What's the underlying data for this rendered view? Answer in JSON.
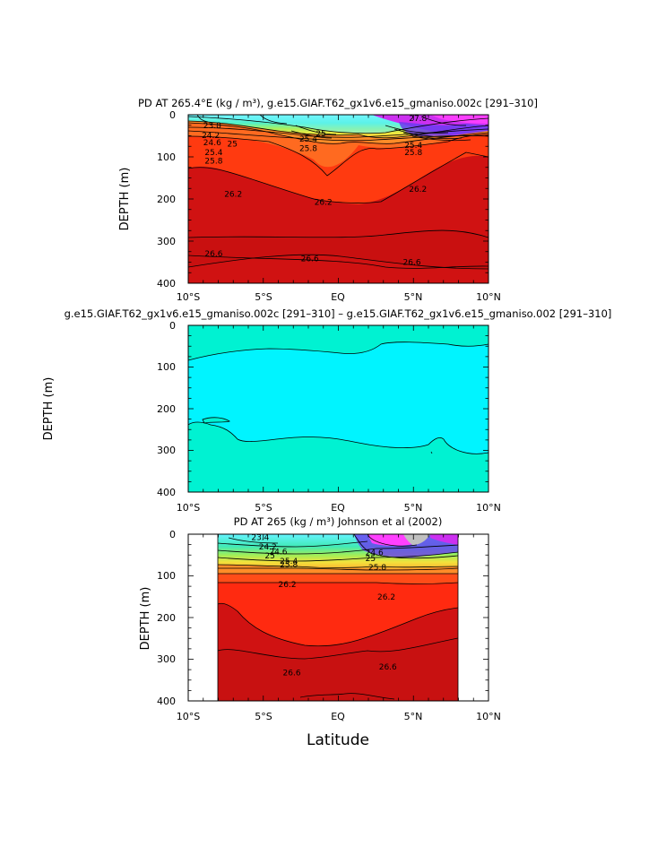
{
  "figure": {
    "x_axis_label": "Latitude"
  },
  "chart_data": [
    {
      "type": "heatmap",
      "kind": "filled-contour depth section",
      "title": "PD AT 265.4°E (kg / m³), g.e15.GIAF.T62_gx1v6.e15_gmaniso.002c [291–310]",
      "xlabel": "",
      "ylabel": "DEPTH (m)",
      "xlim": [
        -10,
        10
      ],
      "ylim": [
        400,
        0
      ],
      "x_ticks": [
        "10°S",
        "5°S",
        "EQ",
        "5°N",
        "10°N"
      ],
      "y_ticks": [
        "0",
        "100",
        "200",
        "300",
        "400"
      ],
      "lat_range": [
        -10,
        10
      ],
      "contour_labels": [
        {
          "text": "23.8",
          "lat": -9.0,
          "depth": 25
        },
        {
          "text": "24.2",
          "lat": -9.1,
          "depth": 49
        },
        {
          "text": "24.6",
          "lat": -9.0,
          "depth": 66
        },
        {
          "text": "25",
          "lat": -7.4,
          "depth": 69
        },
        {
          "text": "25.4",
          "lat": -8.9,
          "depth": 89
        },
        {
          "text": "25.8",
          "lat": -8.9,
          "depth": 110
        },
        {
          "text": "26.2",
          "lat": -7.6,
          "depth": 188
        },
        {
          "text": "26.2",
          "lat": -1.6,
          "depth": 207
        },
        {
          "text": "26.2",
          "lat": 4.7,
          "depth": 177
        },
        {
          "text": "26.6",
          "lat": -8.9,
          "depth": 330
        },
        {
          "text": "26.6",
          "lat": -2.5,
          "depth": 341
        },
        {
          "text": "26.6",
          "lat": 4.3,
          "depth": 350
        },
        {
          "text": "25.4",
          "lat": -2.6,
          "depth": 57
        },
        {
          "text": "25.8",
          "lat": -2.6,
          "depth": 80
        },
        {
          "text": "25",
          "lat": -1.5,
          "depth": 45
        },
        {
          "text": "25.4",
          "lat": 4.4,
          "depth": 72
        },
        {
          "text": "25.8",
          "lat": 4.4,
          "depth": 89
        },
        {
          "text": "27.8",
          "lat": 4.7,
          "depth": 8
        }
      ]
    },
    {
      "type": "heatmap",
      "kind": "filled-contour depth section (difference)",
      "title": "g.e15.GIAF.T62_gx1v6.e15_gmaniso.002c [291–310] – g.e15.GIAF.T62_gx1v6.e15_gmaniso.002 [291–310]",
      "xlabel": "",
      "ylabel": "DEPTH (m)",
      "xlim": [
        -10,
        10
      ],
      "ylim": [
        400,
        0
      ],
      "x_ticks": [
        "10°S",
        "5°S",
        "EQ",
        "5°N",
        "10°N"
      ],
      "y_ticks": [
        "0",
        "100",
        "200",
        "300",
        "400"
      ],
      "lat_range": [
        -10,
        10
      ],
      "contour_labels": []
    },
    {
      "type": "heatmap",
      "kind": "filled-contour depth section (observations)",
      "title": "PD AT 265 (kg / m³) Johnson et al (2002)",
      "xlabel": "Latitude",
      "ylabel": "DEPTH (m)",
      "xlim": [
        -10,
        10
      ],
      "ylim": [
        400,
        0
      ],
      "x_ticks": [
        "10°S",
        "5°S",
        "EQ",
        "5°N",
        "10°N"
      ],
      "y_ticks": [
        "0",
        "100",
        "200",
        "300",
        "400"
      ],
      "lat_range": [
        -8,
        8
      ],
      "contour_labels": [
        {
          "text": "23.4",
          "lat": -5.8,
          "depth": 8
        },
        {
          "text": "24.2",
          "lat": -5.3,
          "depth": 30
        },
        {
          "text": "24.6",
          "lat": -4.6,
          "depth": 42
        },
        {
          "text": "25",
          "lat": -4.9,
          "depth": 52
        },
        {
          "text": "25.4",
          "lat": -3.9,
          "depth": 64
        },
        {
          "text": "25.8",
          "lat": -3.9,
          "depth": 73
        },
        {
          "text": "26.2",
          "lat": -4.0,
          "depth": 120
        },
        {
          "text": "26.2",
          "lat": 2.6,
          "depth": 150
        },
        {
          "text": "26.6",
          "lat": -3.7,
          "depth": 332
        },
        {
          "text": "26.6",
          "lat": 2.7,
          "depth": 318
        },
        {
          "text": "24.6",
          "lat": 1.8,
          "depth": 44
        },
        {
          "text": "25",
          "lat": 1.8,
          "depth": 58
        },
        {
          "text": "25.8",
          "lat": 2.0,
          "depth": 80
        }
      ]
    }
  ]
}
